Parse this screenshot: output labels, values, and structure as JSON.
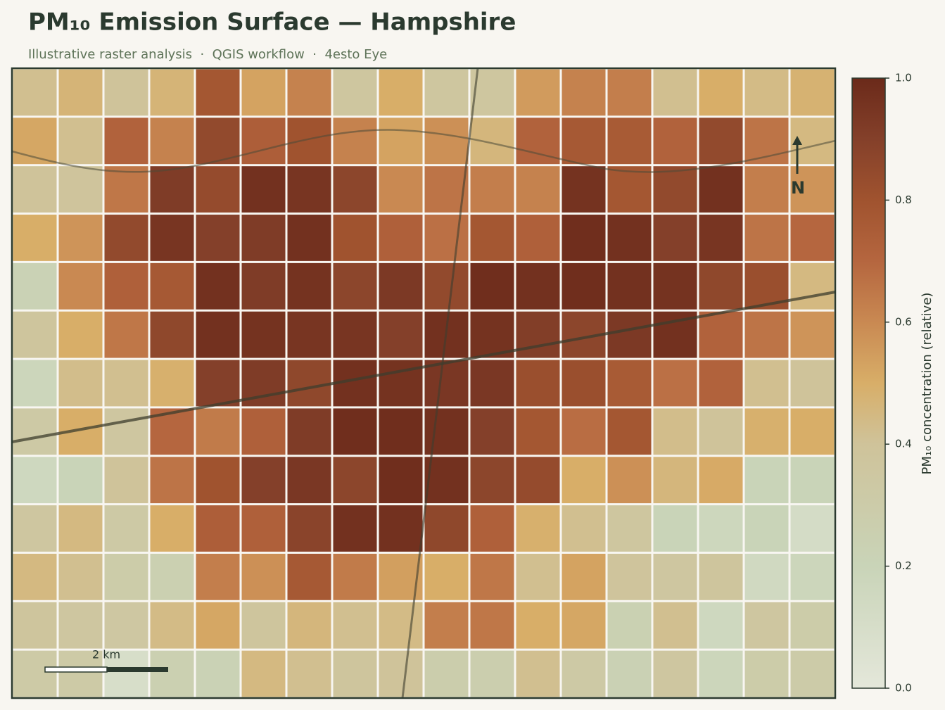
{
  "chart_data": {
    "type": "heatmap",
    "title": "PM₁₀ Emission Surface — Hampshire",
    "subtitle": "Illustrative raster analysis  ·  QGIS workflow  ·  4esto Eye",
    "colorbar_label": "PM₁₀ concentration (relative)",
    "scale_label": "2 km",
    "north_label": "N",
    "clim": [
      0,
      1
    ],
    "cticks": [
      {
        "value": 0,
        "label": "0.0"
      },
      0.2,
      0.4,
      0.6,
      0.8,
      {
        "value": 1,
        "label": "1.0"
      }
    ],
    "colormap": [
      {
        "value": 0,
        "color": "#e4e7da"
      },
      {
        "value": 0.2,
        "color": "#c9d4b8"
      },
      {
        "value": 0.4,
        "color": "#cfc39a"
      },
      {
        "value": 0.5,
        "color": "#d8ae68"
      },
      {
        "value": 0.6,
        "color": "#c98952"
      },
      {
        "value": 0.7,
        "color": "#b5663f"
      },
      {
        "value": 0.8,
        "color": "#a0532f"
      },
      {
        "value": 0.9,
        "color": "#84402a"
      },
      {
        "value": 1,
        "color": "#6b2a1a"
      }
    ],
    "values": [
      [
        0.42,
        0.47,
        0.4,
        0.47,
        0.78,
        0.53,
        0.62,
        0.37,
        0.5,
        0.37,
        0.37,
        0.55,
        0.62,
        0.63,
        0.42,
        0.5,
        0.44,
        0.48
      ],
      [
        0.52,
        0.42,
        0.72,
        0.62,
        0.85,
        0.74,
        0.8,
        0.62,
        0.53,
        0.58,
        0.46,
        0.72,
        0.77,
        0.76,
        0.72,
        0.85,
        0.66,
        0.45
      ],
      [
        0.4,
        0.39,
        0.65,
        0.92,
        0.84,
        0.97,
        0.95,
        0.87,
        0.6,
        0.66,
        0.63,
        0.62,
        0.96,
        0.78,
        0.85,
        0.97,
        0.63,
        0.57
      ],
      [
        0.5,
        0.57,
        0.85,
        0.95,
        0.9,
        0.92,
        0.97,
        0.8,
        0.73,
        0.67,
        0.78,
        0.73,
        0.98,
        0.97,
        0.9,
        0.95,
        0.66,
        0.7
      ],
      [
        0.22,
        0.6,
        0.73,
        0.77,
        0.97,
        0.92,
        0.96,
        0.87,
        0.93,
        0.85,
        0.98,
        0.97,
        0.98,
        0.97,
        0.96,
        0.86,
        0.82,
        0.45
      ],
      [
        0.38,
        0.5,
        0.65,
        0.86,
        0.97,
        0.96,
        0.95,
        0.95,
        0.9,
        0.97,
        0.96,
        0.91,
        0.87,
        0.93,
        0.97,
        0.72,
        0.66,
        0.57
      ],
      [
        0.18,
        0.43,
        0.42,
        0.49,
        0.9,
        0.92,
        0.86,
        0.97,
        0.96,
        0.94,
        0.94,
        0.82,
        0.82,
        0.76,
        0.67,
        0.72,
        0.42,
        0.4
      ],
      [
        0.33,
        0.5,
        0.36,
        0.7,
        0.64,
        0.73,
        0.92,
        0.98,
        0.98,
        0.97,
        0.9,
        0.78,
        0.68,
        0.78,
        0.43,
        0.4,
        0.49,
        0.5
      ],
      [
        0.16,
        0.2,
        0.4,
        0.66,
        0.8,
        0.9,
        0.94,
        0.87,
        0.98,
        0.97,
        0.87,
        0.84,
        0.5,
        0.58,
        0.46,
        0.51,
        0.2,
        0.2
      ],
      [
        0.36,
        0.45,
        0.33,
        0.5,
        0.74,
        0.73,
        0.88,
        0.97,
        0.97,
        0.86,
        0.73,
        0.49,
        0.42,
        0.37,
        0.2,
        0.17,
        0.2,
        0.12
      ],
      [
        0.45,
        0.42,
        0.3,
        0.25,
        0.63,
        0.58,
        0.77,
        0.64,
        0.54,
        0.5,
        0.65,
        0.42,
        0.53,
        0.39,
        0.36,
        0.38,
        0.15,
        0.18
      ],
      [
        0.38,
        0.36,
        0.35,
        0.44,
        0.52,
        0.38,
        0.46,
        0.42,
        0.44,
        0.63,
        0.65,
        0.5,
        0.52,
        0.24,
        0.42,
        0.16,
        0.36,
        0.3
      ],
      [
        0.32,
        0.32,
        0.1,
        0.25,
        0.22,
        0.45,
        0.42,
        0.38,
        0.4,
        0.28,
        0.27,
        0.42,
        0.33,
        0.23,
        0.36,
        0.18,
        0.3,
        0.31
      ]
    ]
  }
}
